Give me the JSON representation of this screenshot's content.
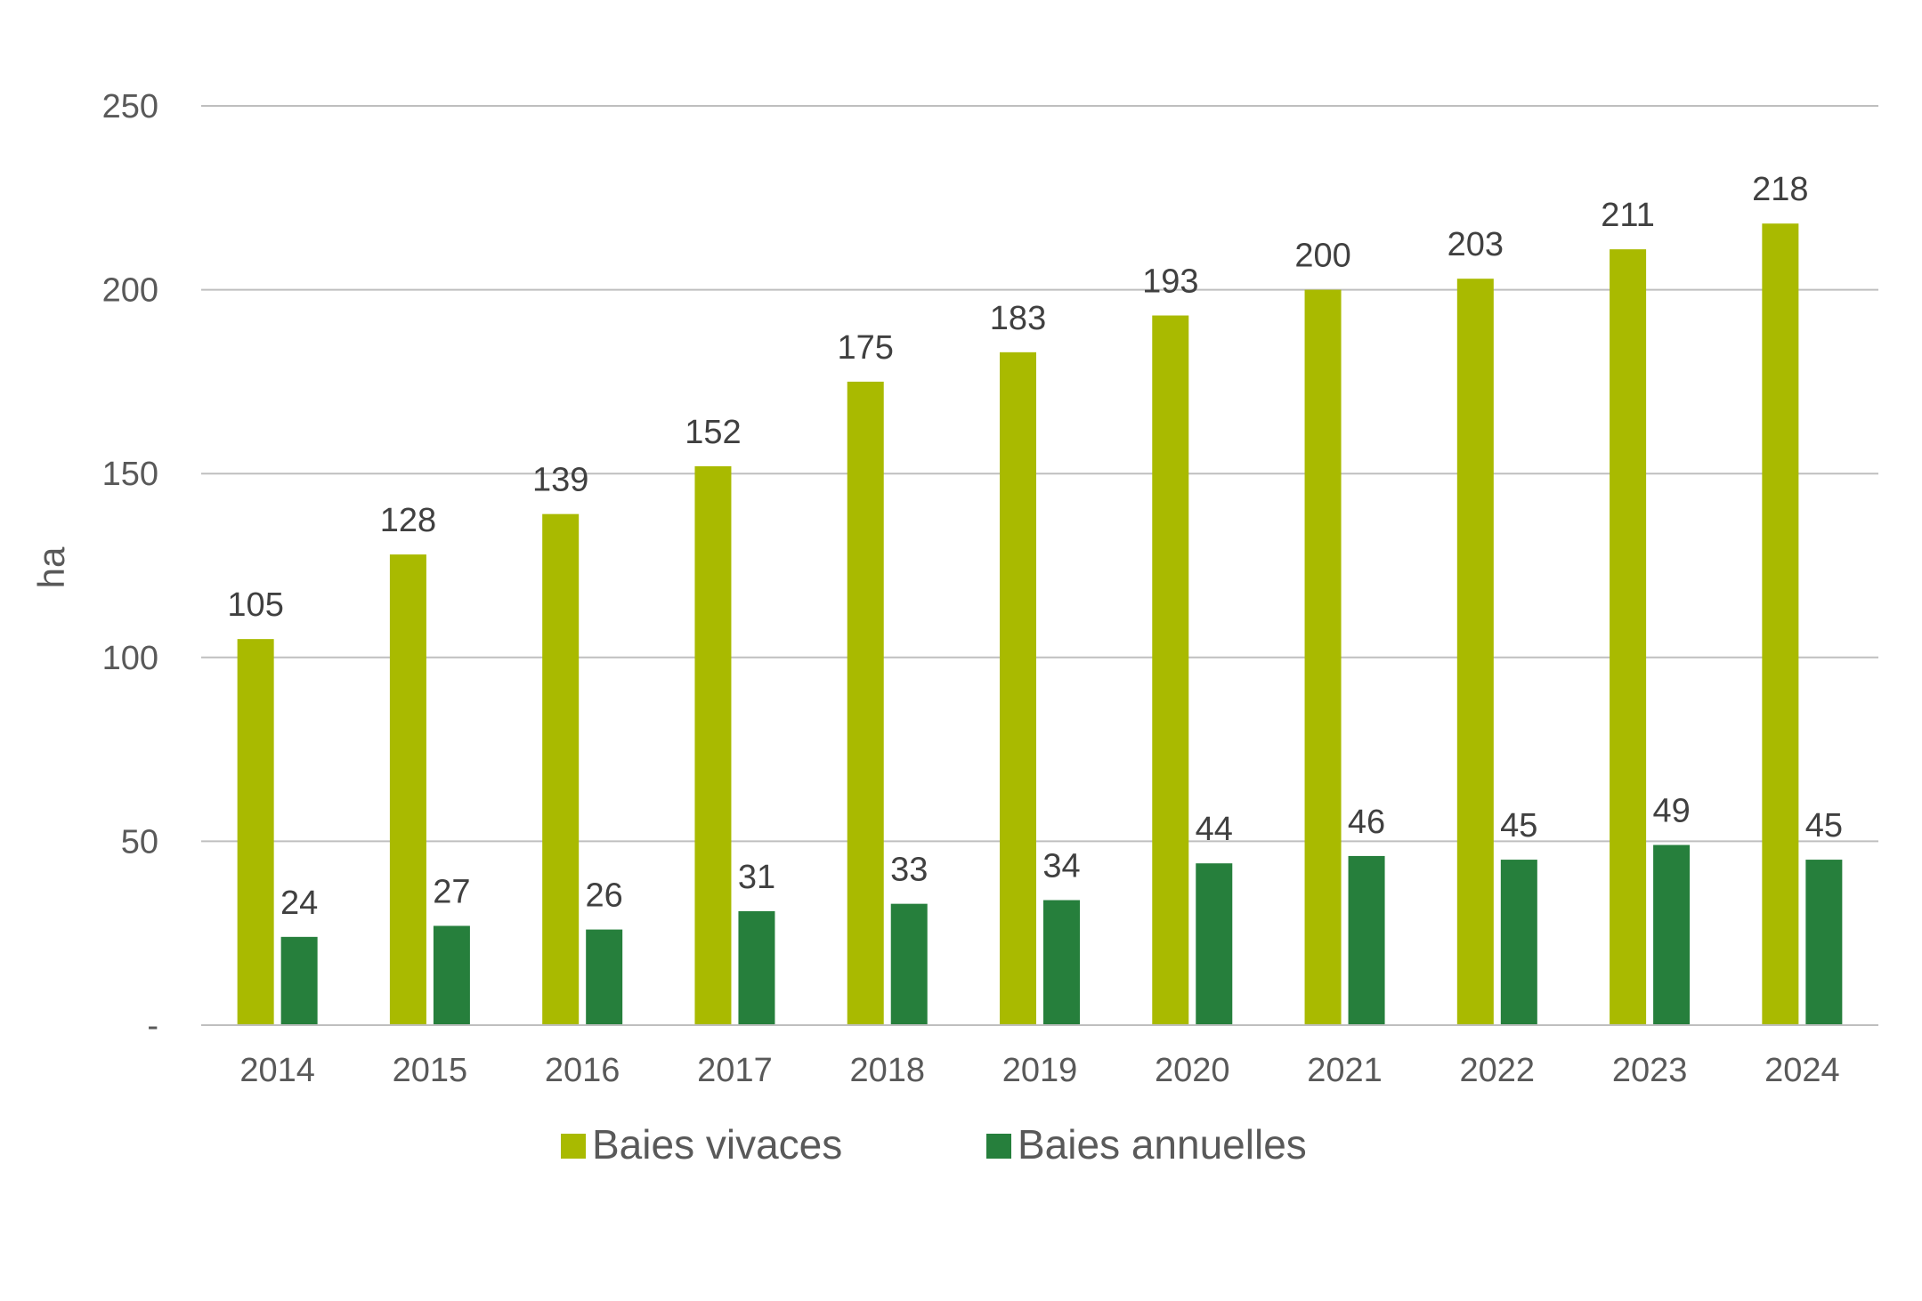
{
  "chart_data": {
    "type": "bar",
    "title": "",
    "xlabel": "",
    "ylabel": "ha",
    "ylim": [
      0,
      250
    ],
    "yticks": [
      0,
      50,
      100,
      150,
      200,
      250
    ],
    "ytick_labels": [
      "-",
      "50",
      "100",
      "150",
      "200",
      "250"
    ],
    "grid": true,
    "legend_position": "bottom",
    "categories": [
      "2014",
      "2015",
      "2016",
      "2017",
      "2018",
      "2019",
      "2020",
      "2021",
      "2022",
      "2023",
      "2024"
    ],
    "series": [
      {
        "name": "Baies vivaces",
        "color": "#A9BA00",
        "values": [
          105,
          128,
          139,
          152,
          175,
          183,
          193,
          200,
          203,
          211,
          218
        ]
      },
      {
        "name": "Baies annuelles",
        "color": "#267F3C",
        "values": [
          24,
          27,
          26,
          31,
          33,
          34,
          44,
          46,
          45,
          49,
          45
        ]
      }
    ],
    "colors": {
      "gridline": "#BFBFBF",
      "axis": "#BFBFBF",
      "text": "#595959",
      "label": "#404040"
    }
  }
}
